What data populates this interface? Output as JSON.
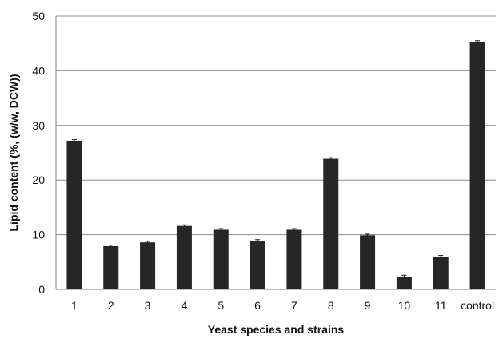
{
  "chart_data": {
    "type": "bar",
    "title": "",
    "xlabel": "Yeast species and strains",
    "ylabel": "Lipid content (%, (w/w, DCW))",
    "categories": [
      "1",
      "2",
      "3",
      "4",
      "5",
      "6",
      "7",
      "8",
      "9",
      "10",
      "11",
      "control"
    ],
    "values": [
      27.2,
      7.9,
      8.6,
      11.6,
      10.9,
      8.9,
      10.9,
      23.9,
      9.9,
      2.3,
      6.0,
      45.3
    ],
    "errors": [
      0.2,
      0.2,
      0.2,
      0.2,
      0.2,
      0.2,
      0.2,
      0.2,
      0.2,
      0.3,
      0.2,
      0.2
    ],
    "ylim": [
      0,
      50
    ],
    "yticks": [
      0,
      10,
      20,
      30,
      40,
      50
    ],
    "grid": true,
    "legend": "none",
    "colors": {
      "bar": "#262626",
      "grid": "#8c8c8c",
      "axis": "#7f7f7f",
      "text": "#111111"
    }
  }
}
